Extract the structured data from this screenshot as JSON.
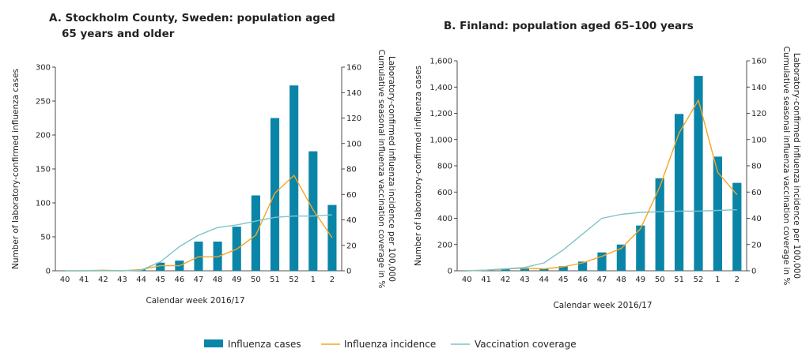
{
  "colors": {
    "bars": "#0a85a8",
    "incidence": "#f5a623",
    "vaccination": "#7fc4c8",
    "axis": "#231f20"
  },
  "legend": {
    "cases": "Influenza cases",
    "incidence": "Influenza incidence",
    "vaccination": "Vaccination coverage"
  },
  "chart_data": [
    {
      "type": "bar",
      "title_line1": "A. Stockholm County, Sweden: population aged",
      "title_line2": "65 years and older",
      "xlabel": "Calendar week 2016/17",
      "ylabel": "Number of laboratory-confirmed influenza cases",
      "y2label_line1": "Laboratory-confirmed influenza incidence per 100,000",
      "y2label_line2": "Cumulative seasonal influenza vaccination coverage in %",
      "categories": [
        "40",
        "41",
        "42",
        "43",
        "44",
        "45",
        "46",
        "47",
        "48",
        "49",
        "50",
        "51",
        "52",
        "1",
        "2"
      ],
      "ylim": [
        0,
        300
      ],
      "yticks": [
        0,
        50,
        100,
        150,
        200,
        250,
        300
      ],
      "ytick_labels": [
        "0",
        "50",
        "100",
        "150",
        "200",
        "250",
        "300"
      ],
      "y2lim": [
        0,
        160
      ],
      "y2ticks": [
        0,
        20,
        40,
        60,
        80,
        100,
        120,
        140,
        160
      ],
      "y2tick_labels": [
        "0",
        "20",
        "40",
        "60",
        "80",
        "100",
        "120",
        "140",
        "160"
      ],
      "series": [
        {
          "name": "Influenza cases",
          "kind": "bar",
          "axis": "left",
          "values": [
            0,
            0,
            1,
            0,
            2,
            12,
            15,
            43,
            43,
            65,
            111,
            225,
            273,
            176,
            97
          ]
        },
        {
          "name": "Influenza incidence",
          "kind": "line",
          "axis": "right",
          "values": [
            0,
            0,
            0.5,
            0,
            1,
            4,
            4,
            11,
            11,
            17,
            28,
            61,
            75,
            48,
            26
          ]
        },
        {
          "name": "Vaccination coverage",
          "kind": "line",
          "axis": "right",
          "values": [
            0,
            0,
            0,
            0,
            0.5,
            7,
            19,
            28,
            34,
            36,
            39,
            42,
            43,
            43,
            44
          ]
        }
      ]
    },
    {
      "type": "bar",
      "title_line1": "B. Finland: population aged 65–100 years",
      "title_line2": "",
      "xlabel": "Calendar week 2016/17",
      "ylabel": "Number of laboratory-confirmed influenza cases",
      "y2label_line1": "Laboratory-confirmed influenza incidence per 100,000",
      "y2label_line2": "Cumulative seasonal influenza vaccination coverage in %",
      "categories": [
        "40",
        "41",
        "42",
        "43",
        "44",
        "45",
        "46",
        "47",
        "48",
        "49",
        "50",
        "51",
        "52",
        "1",
        "2"
      ],
      "ylim": [
        0,
        1600
      ],
      "yticks": [
        0,
        200,
        400,
        600,
        800,
        1000,
        1200,
        1400,
        1600
      ],
      "ytick_labels": [
        "0",
        "200",
        "400",
        "600",
        "800",
        "1,000",
        "1,200",
        "1,400",
        "1,600"
      ],
      "y2lim": [
        0,
        160
      ],
      "y2ticks": [
        0,
        20,
        40,
        60,
        80,
        100,
        120,
        140,
        160
      ],
      "y2tick_labels": [
        "0",
        "20",
        "40",
        "60",
        "80",
        "100",
        "120",
        "140",
        "160"
      ],
      "series": [
        {
          "name": "Influenza cases",
          "kind": "bar",
          "axis": "left",
          "values": [
            2,
            5,
            15,
            22,
            18,
            35,
            70,
            140,
            200,
            345,
            705,
            1195,
            1485,
            870,
            670
          ]
        },
        {
          "name": "Influenza incidence",
          "kind": "line",
          "axis": "right",
          "values": [
            0,
            0.5,
            1.5,
            2,
            1.5,
            3,
            6,
            11,
            17,
            32,
            64,
            105,
            130,
            75,
            58
          ]
        },
        {
          "name": "Vaccination coverage",
          "kind": "line",
          "axis": "right",
          "values": [
            0,
            0.5,
            1.5,
            2.5,
            6,
            16,
            28,
            40,
            43,
            44.5,
            45,
            45.5,
            45.5,
            46,
            46.5
          ]
        }
      ]
    }
  ]
}
